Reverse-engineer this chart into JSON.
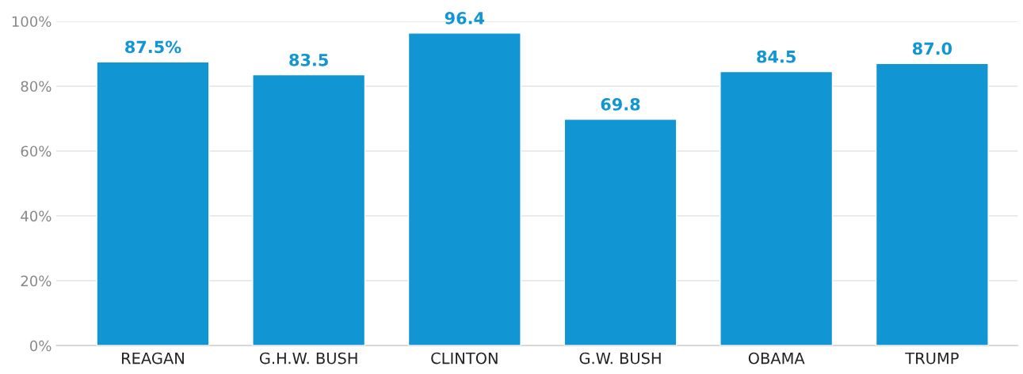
{
  "chart_data": {
    "type": "bar",
    "categories": [
      "REAGAN",
      "G.H.W. BUSH",
      "CLINTON",
      "G.W. BUSH",
      "OBAMA",
      "TRUMP"
    ],
    "values": [
      87.5,
      83.5,
      96.4,
      69.8,
      84.5,
      87.0
    ],
    "value_labels": [
      "87.5%",
      "83.5",
      "96.4",
      "69.8",
      "84.5",
      "87.0"
    ],
    "color": "#1195d3",
    "ylim": [
      0,
      100
    ],
    "yticks": [
      {
        "value": 0,
        "label": "0%"
      },
      {
        "value": 20,
        "label": "20%"
      },
      {
        "value": 40,
        "label": "40%"
      },
      {
        "value": 60,
        "label": "60%"
      },
      {
        "value": 80,
        "label": "80%"
      },
      {
        "value": 100,
        "label": "100%"
      }
    ],
    "grid": "y"
  }
}
